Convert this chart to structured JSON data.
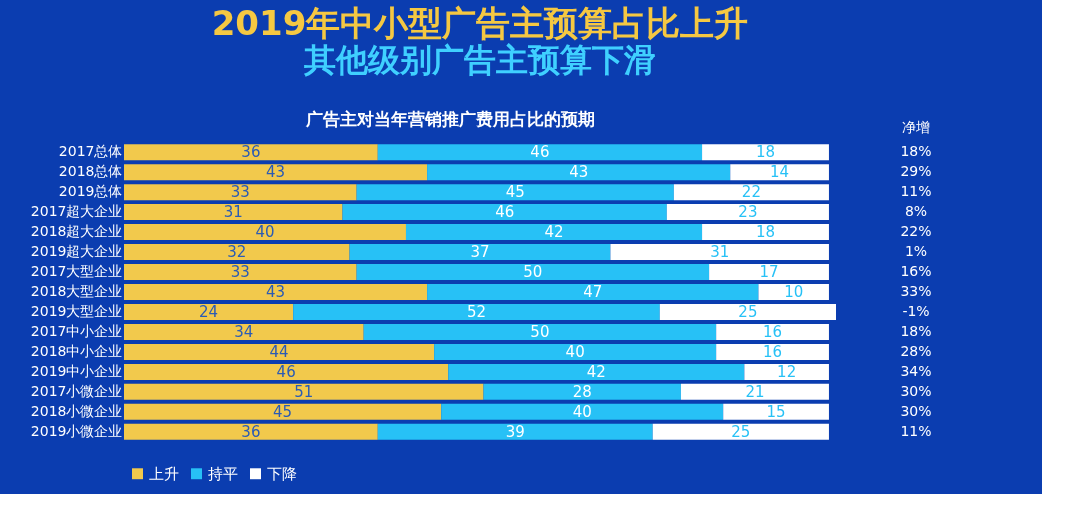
{
  "chart_data": {
    "type": "bar",
    "orientation": "horizontal",
    "stacked": true,
    "data_labels": true,
    "tick_labels": "y",
    "grid": false,
    "legend": "bottom",
    "title": "2019年中小型广告主预算占比上升",
    "subtitle": "其他级别广告主预算下滑",
    "categories": [
      "2017总体",
      "2018总体",
      "2019总体",
      "2017超大企业",
      "2018超大企业",
      "2019超大企业",
      "2017大型企业",
      "2018大型企业",
      "2019大型企业",
      "2017中小企业",
      "2018中小企业",
      "2019中小企业",
      "2017小微企业",
      "2018小微企业",
      "2019小微企业"
    ],
    "series": [
      {
        "name": "上升",
        "color": "#f2c94c",
        "values": [
          36,
          43,
          33,
          31,
          40,
          32,
          33,
          43,
          24,
          34,
          44,
          46,
          51,
          45,
          36
        ]
      },
      {
        "name": "持平",
        "color": "#27c1f6",
        "values": [
          46,
          43,
          45,
          46,
          42,
          37,
          50,
          47,
          52,
          50,
          40,
          42,
          28,
          40,
          39
        ]
      },
      {
        "name": "下降",
        "color": "#ffffff",
        "values": [
          18,
          14,
          22,
          23,
          18,
          31,
          17,
          10,
          25,
          16,
          16,
          12,
          21,
          15,
          25
        ]
      }
    ],
    "annotations": [
      "广告主对当年营销推广费用占比的预期",
      "净增",
      "18%",
      "29%",
      "11%",
      "8%",
      "22%",
      "1%",
      "16%",
      "33%",
      "-1%",
      "18%",
      "28%",
      "34%",
      "30%",
      "30%",
      "11%"
    ]
  }
}
